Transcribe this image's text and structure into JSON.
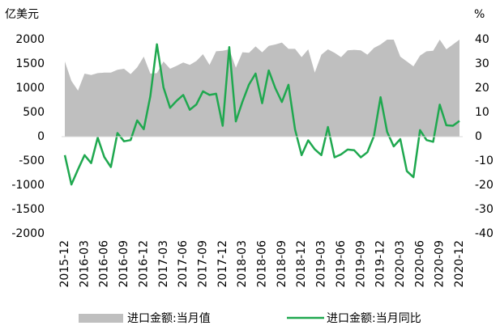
{
  "chart_data": {
    "type": "area-line",
    "y_label": "亿美元",
    "y2_label": "%",
    "categories": [
      "2015-12",
      null,
      null,
      "2016-03",
      null,
      null,
      "2016-06",
      null,
      null,
      "2016-09",
      null,
      null,
      "2016-12",
      null,
      null,
      "2017-03",
      null,
      null,
      "2017-06",
      null,
      null,
      "2017-09",
      null,
      null,
      "2017-12",
      null,
      null,
      "2018-03",
      null,
      null,
      "2018-06",
      null,
      null,
      "2018-09",
      null,
      null,
      "2018-12",
      null,
      null,
      "2019-03",
      null,
      null,
      "2019-06",
      null,
      null,
      "2019-09",
      null,
      null,
      "2019-12",
      null,
      null,
      "2020-03",
      null,
      null,
      "2020-06",
      null,
      null,
      "2020-09",
      null,
      null,
      "2020-12"
    ],
    "series": [
      {
        "name": "进口金额:当月值",
        "color": "#bfbfbf",
        "kind": "area",
        "values": [
          1550,
          1150,
          950,
          1300,
          1270,
          1310,
          1320,
          1320,
          1380,
          1400,
          1290,
          1430,
          1650,
          1300,
          1310,
          1550,
          1400,
          1460,
          1530,
          1480,
          1560,
          1700,
          1480,
          1760,
          1770,
          1800,
          1420,
          1740,
          1730,
          1860,
          1740,
          1870,
          1900,
          1940,
          1810,
          1810,
          1640,
          1800,
          1320,
          1690,
          1800,
          1730,
          1640,
          1780,
          1790,
          1780,
          1690,
          1830,
          1900,
          2000,
          2000,
          1650,
          1550,
          1450,
          1670,
          1760,
          1770,
          2000,
          1800,
          1900,
          2000
        ]
      },
      {
        "name": "进口金额:当月同比",
        "color": "#1fa84f",
        "kind": "line",
        "axis": "y2",
        "values": [
          -7.6,
          -19.7,
          -13.5,
          -7.6,
          -10.9,
          -0.4,
          -8.4,
          -12.5,
          1.5,
          -1.9,
          -1.4,
          6.7,
          3.1,
          16.7,
          38.1,
          20.3,
          11.9,
          14.8,
          17.2,
          11.1,
          13.3,
          18.7,
          17.2,
          17.7,
          4.5,
          36.9,
          6.3,
          14.4,
          21.5,
          26.0,
          13.8,
          27.3,
          20.0,
          14.3,
          21.4,
          3.0,
          -7.6,
          -1.5,
          -5.2,
          -7.6,
          4.0,
          -8.5,
          -7.3,
          -5.3,
          -5.6,
          -8.5,
          -6.4,
          0.3,
          16.3,
          2.0,
          -4.0,
          -1.0,
          -14.2,
          -16.7,
          2.7,
          -1.4,
          -2.1,
          13.2,
          4.7,
          4.5,
          6.5
        ]
      }
    ],
    "ylim": [
      -2000,
      2000
    ],
    "yticks": [
      -2000,
      -1500,
      -1000,
      -500,
      0,
      500,
      1000,
      1500,
      2000
    ],
    "y2lim": [
      -40,
      40
    ],
    "y2ticks": [
      -40,
      -30,
      -20,
      -10,
      0,
      10,
      20,
      30,
      40
    ],
    "legend": "bottom"
  }
}
